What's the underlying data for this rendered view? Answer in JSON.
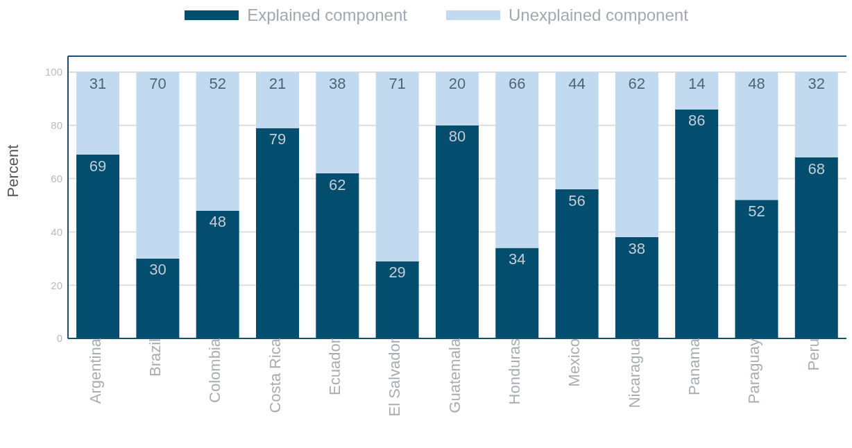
{
  "chart_data": {
    "type": "bar",
    "stacked": true,
    "ylabel": "Percent",
    "categories": [
      "Argentina",
      "Brazil",
      "Colombia",
      "Costa Rica",
      "Ecuador",
      "El Salvador",
      "Guatemala",
      "Honduras",
      "Mexico",
      "Nicaragua",
      "Panama",
      "Paraguay",
      "Peru"
    ],
    "series": [
      {
        "name": "Explained component",
        "color": "#034e6f",
        "values": [
          69,
          30,
          48,
          79,
          62,
          29,
          80,
          34,
          56,
          38,
          86,
          52,
          68
        ]
      },
      {
        "name": "Unexplained component",
        "color": "#c1daef",
        "values": [
          31,
          70,
          52,
          21,
          38,
          71,
          20,
          66,
          44,
          62,
          14,
          48,
          32
        ]
      }
    ],
    "ylim": [
      0,
      106
    ],
    "yticks": [
      0,
      20,
      40,
      60,
      80,
      100
    ],
    "grid": "y",
    "legend": "top",
    "data_labels": true
  }
}
